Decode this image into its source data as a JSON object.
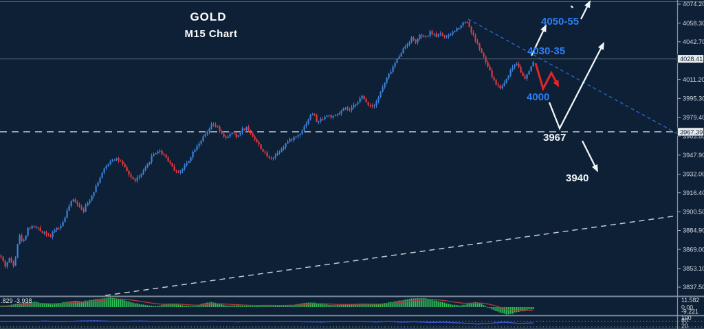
{
  "header": {
    "title": "GOLD",
    "subtitle": "M15 Chart"
  },
  "annotations": {
    "resistance_upper": "4050-55",
    "resistance": "4030-35",
    "support_round": "4000",
    "pivot": "3967",
    "target_lower": "3940"
  },
  "axis": {
    "price_ticks": [
      4074.2,
      4058.3,
      4042.7,
      4011.2,
      3995.3,
      3979.4,
      3963.8,
      3947.9,
      3932.0,
      3916.4,
      3900.5,
      3884.9,
      3869.0,
      3853.1,
      3837.5
    ],
    "price_boxes": [
      {
        "label": "4028.41",
        "value": 4028.41,
        "role": "current-price"
      },
      {
        "label": "3967.39",
        "value": 3967.39,
        "role": "dashed-level"
      }
    ],
    "macd_ticks": [
      "11.582",
      "0.00",
      "-9.221"
    ],
    "osc_ticks": [
      "100",
      "80",
      "20"
    ]
  },
  "chart_data": {
    "type": "candlestick",
    "symbol": "GOLD",
    "timeframe": "M15",
    "title": "GOLD M15 Chart",
    "price_axis": {
      "min": 3830.0,
      "max": 4077.6,
      "tick_step": 15.9,
      "current_price": 4028.41,
      "dashed_level": 3967.39
    },
    "up_color": "#3d80d8",
    "down_color": "#e2393f",
    "price_path": [
      [
        0,
        3863.9
      ],
      [
        7,
        3855.3
      ],
      [
        13,
        3861.0
      ],
      [
        20,
        3855.9
      ],
      [
        27,
        3881.2
      ],
      [
        33,
        3874.8
      ],
      [
        40,
        3886.9
      ],
      [
        50,
        3888.1
      ],
      [
        58,
        3884.6
      ],
      [
        66,
        3882.9
      ],
      [
        73,
        3879.4
      ],
      [
        80,
        3886.3
      ],
      [
        88,
        3888.1
      ],
      [
        95,
        3897.8
      ],
      [
        101,
        3907.0
      ],
      [
        107,
        3911.0
      ],
      [
        114,
        3905.8
      ],
      [
        121,
        3901.8
      ],
      [
        128,
        3908.7
      ],
      [
        136,
        3917.9
      ],
      [
        144,
        3928.2
      ],
      [
        152,
        3936.9
      ],
      [
        160,
        3943.2
      ],
      [
        168,
        3945.5
      ],
      [
        176,
        3941.5
      ],
      [
        185,
        3933.4
      ],
      [
        194,
        3926.5
      ],
      [
        203,
        3930.0
      ],
      [
        212,
        3937.5
      ],
      [
        221,
        3947.8
      ],
      [
        230,
        3951.8
      ],
      [
        239,
        3947.8
      ],
      [
        248,
        3940.3
      ],
      [
        256,
        3932.9
      ],
      [
        265,
        3936.3
      ],
      [
        274,
        3943.8
      ],
      [
        283,
        3953.5
      ],
      [
        292,
        3960.4
      ],
      [
        301,
        3966.8
      ],
      [
        308,
        3973.7
      ],
      [
        315,
        3971.4
      ],
      [
        322,
        3965.0
      ],
      [
        330,
        3962.2
      ],
      [
        337,
        3966.8
      ],
      [
        344,
        3962.7
      ],
      [
        351,
        3969.1
      ],
      [
        358,
        3970.8
      ],
      [
        366,
        3965.0
      ],
      [
        373,
        3958.7
      ],
      [
        382,
        3951.2
      ],
      [
        391,
        3944.9
      ],
      [
        399,
        3947.2
      ],
      [
        408,
        3952.9
      ],
      [
        417,
        3958.7
      ],
      [
        426,
        3962.2
      ],
      [
        434,
        3965.0
      ],
      [
        442,
        3971.9
      ],
      [
        449,
        3979.4
      ],
      [
        455,
        3983.4
      ],
      [
        461,
        3974.8
      ],
      [
        468,
        3978.8
      ],
      [
        476,
        3981.1
      ],
      [
        485,
        3979.4
      ],
      [
        493,
        3982.8
      ],
      [
        501,
        3986.9
      ],
      [
        509,
        3985.1
      ],
      [
        517,
        3991.5
      ],
      [
        526,
        3996.6
      ],
      [
        534,
        3990.9
      ],
      [
        542,
        3988.6
      ],
      [
        550,
        3996.6
      ],
      [
        558,
        4007.0
      ],
      [
        566,
        4016.2
      ],
      [
        574,
        4024.8
      ],
      [
        582,
        4033.4
      ],
      [
        590,
        4039.7
      ],
      [
        598,
        4045.5
      ],
      [
        605,
        4042.6
      ],
      [
        611,
        4048.3
      ],
      [
        618,
        4045.5
      ],
      [
        626,
        4051.2
      ],
      [
        633,
        4047.2
      ],
      [
        640,
        4050.1
      ],
      [
        648,
        4045.5
      ],
      [
        656,
        4049.5
      ],
      [
        663,
        4052.9
      ],
      [
        670,
        4057.0
      ],
      [
        678,
        4061.0
      ],
      [
        684,
        4052.4
      ],
      [
        690,
        4044.9
      ],
      [
        696,
        4038.6
      ],
      [
        703,
        4029.4
      ],
      [
        710,
        4020.8
      ],
      [
        716,
        4012.2
      ],
      [
        722,
        4006.4
      ],
      [
        728,
        4004.1
      ],
      [
        734,
        4009.3
      ],
      [
        740,
        4016.7
      ],
      [
        746,
        4022.5
      ],
      [
        752,
        4025.4
      ],
      [
        757,
        4017.9
      ],
      [
        762,
        4010.5
      ],
      [
        767,
        4015.6
      ],
      [
        772,
        4022.5
      ],
      [
        776,
        4027.1
      ]
    ],
    "trendlines": [
      {
        "name": "ascending-support",
        "style": "dashed",
        "color": "#cdd4da",
        "from": [
          153,
          3830.5
        ],
        "to": [
          985,
          3897.2
        ]
      },
      {
        "name": "descending-resistance",
        "style": "dashed",
        "color": "#2e6fd8",
        "from": [
          681,
          4061.6
        ],
        "to": [
          988,
          3965.0
        ]
      }
    ],
    "projection_arrows": [
      {
        "name": "arrow-to-4050-55",
        "points": [
          [
            773,
            4031.1
          ],
          [
            794,
            4056.4
          ]
        ]
      },
      {
        "name": "arrow-top-right",
        "points": [
          [
            845,
            4061.6
          ],
          [
            858,
            4076.5
          ]
        ]
      },
      {
        "name": "arrow-v-bounce-up",
        "points": [
          [
            799,
            3992.0
          ],
          [
            814,
            3970.2
          ],
          [
            878,
            4041.5
          ]
        ]
      },
      {
        "name": "arrow-down-to-3940",
        "points": [
          [
            847,
            3959.9
          ],
          [
            869,
            3934.6
          ]
        ]
      }
    ],
    "red_path": [
      [
        779,
        4024.8
      ],
      [
        790,
        4003.5
      ],
      [
        802,
        4016.7
      ],
      [
        812,
        4005.8
      ]
    ],
    "macd": {
      "last_values": ".829 -3.938",
      "scale": [
        "11.582",
        "0.00",
        "-9.221"
      ],
      "series": [
        [
          0,
          1.2
        ],
        [
          18,
          2.8
        ],
        [
          35,
          5
        ],
        [
          50,
          6.5
        ],
        [
          62,
          4
        ],
        [
          75,
          3.2
        ],
        [
          90,
          5.5
        ],
        [
          105,
          7.5
        ],
        [
          118,
          7
        ],
        [
          132,
          8.5
        ],
        [
          148,
          10.5
        ],
        [
          160,
          11.5
        ],
        [
          172,
          10
        ],
        [
          185,
          7
        ],
        [
          200,
          4
        ],
        [
          215,
          2
        ],
        [
          228,
          1
        ],
        [
          240,
          3.5
        ],
        [
          252,
          4
        ],
        [
          262,
          2.5
        ],
        [
          272,
          1
        ],
        [
          283,
          0.8
        ],
        [
          295,
          4.5
        ],
        [
          307,
          6
        ],
        [
          318,
          4
        ],
        [
          330,
          1.8
        ],
        [
          342,
          2.2
        ],
        [
          355,
          1.5
        ],
        [
          368,
          1
        ],
        [
          380,
          2.4
        ],
        [
          395,
          1.6
        ],
        [
          410,
          2
        ],
        [
          425,
          2.6
        ],
        [
          437,
          4
        ],
        [
          450,
          5.5
        ],
        [
          462,
          4.8
        ],
        [
          475,
          3
        ],
        [
          488,
          2.2
        ],
        [
          500,
          3
        ],
        [
          515,
          3.6
        ],
        [
          530,
          4.2
        ],
        [
          545,
          3
        ],
        [
          558,
          4.5
        ],
        [
          572,
          6.5
        ],
        [
          586,
          8.5
        ],
        [
          600,
          10.5
        ],
        [
          612,
          11
        ],
        [
          622,
          10
        ],
        [
          632,
          8
        ],
        [
          642,
          6
        ],
        [
          652,
          4
        ],
        [
          660,
          2.5
        ],
        [
          668,
          1.8
        ],
        [
          676,
          3
        ],
        [
          684,
          5
        ],
        [
          692,
          6.2
        ],
        [
          700,
          4
        ],
        [
          706,
          1
        ],
        [
          712,
          -1.5
        ],
        [
          720,
          -4.5
        ],
        [
          728,
          -7
        ],
        [
          736,
          -8.8
        ],
        [
          744,
          -8
        ],
        [
          752,
          -6
        ],
        [
          760,
          -4.5
        ],
        [
          768,
          -3.2
        ],
        [
          776,
          -2.2
        ]
      ]
    },
    "oscillator": {
      "levels": [
        80,
        20
      ],
      "series": [
        [
          0,
          78
        ],
        [
          25,
          82
        ],
        [
          45,
          76
        ],
        [
          65,
          84
        ],
        [
          85,
          78
        ],
        [
          105,
          80
        ],
        [
          125,
          88
        ],
        [
          145,
          86
        ],
        [
          165,
          80
        ],
        [
          185,
          83
        ],
        [
          205,
          85
        ],
        [
          225,
          80
        ],
        [
          245,
          78
        ],
        [
          265,
          82
        ],
        [
          285,
          79
        ],
        [
          305,
          84
        ],
        [
          325,
          80
        ],
        [
          345,
          77
        ],
        [
          365,
          80
        ],
        [
          385,
          82
        ],
        [
          405,
          79
        ],
        [
          425,
          81
        ],
        [
          445,
          77
        ],
        [
          465,
          74
        ],
        [
          485,
          78
        ],
        [
          505,
          82
        ],
        [
          525,
          79
        ],
        [
          545,
          76
        ],
        [
          565,
          79
        ],
        [
          585,
          73
        ],
        [
          605,
          76
        ],
        [
          625,
          70
        ],
        [
          645,
          73
        ],
        [
          665,
          66
        ],
        [
          680,
          58
        ],
        [
          695,
          52
        ],
        [
          710,
          58
        ],
        [
          722,
          66
        ],
        [
          734,
          72
        ],
        [
          746,
          64
        ],
        [
          758,
          57
        ],
        [
          768,
          61
        ],
        [
          776,
          63
        ]
      ]
    }
  }
}
